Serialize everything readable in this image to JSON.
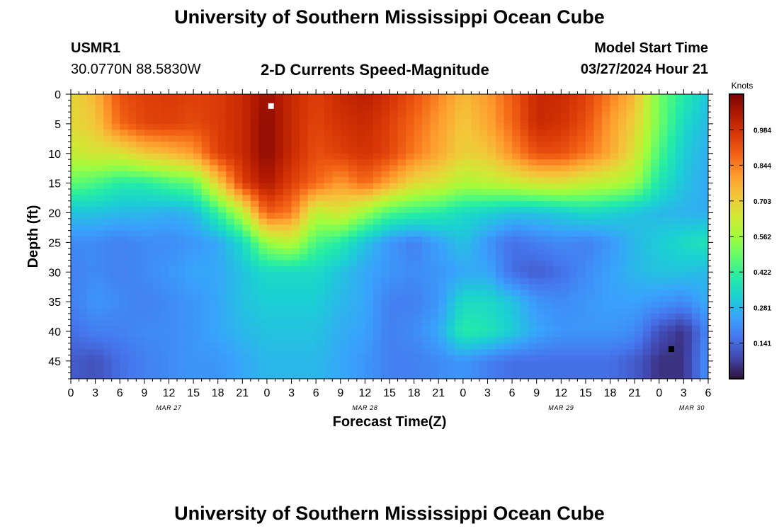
{
  "page": {
    "title": "University of Southern Mississippi Ocean Cube",
    "footer_title": "University of Southern Mississippi Ocean Cube",
    "station_id": "USMR1",
    "station_coords": "30.0770N  88.5830W",
    "subtitle": "2-D Currents Speed-Magnitude",
    "model_start_label": "Model Start Time",
    "model_start_value": "03/27/2024 Hour 21"
  },
  "chart_data": {
    "type": "heatmap",
    "title": "2-D Currents Speed-Magnitude",
    "xlabel": "Forecast Time(Z)",
    "ylabel": "Depth (ft)",
    "colorbar_label": "Knots",
    "colorbar_ticks": [
      0.141,
      0.281,
      0.422,
      0.562,
      0.703,
      0.844,
      0.984
    ],
    "colorbar_range": [
      0.0,
      1.125
    ],
    "colormap": [
      "#30123b",
      "#4145ab",
      "#4675ed",
      "#39a2fc",
      "#1bcfd4",
      "#24eca6",
      "#61fc6c",
      "#a4fc3b",
      "#d1e834",
      "#f3c63a",
      "#fe9b2d",
      "#f36315",
      "#d93806",
      "#b11901",
      "#7a0403"
    ],
    "x_range_hours": [
      0,
      78
    ],
    "y_range_ft": [
      0,
      48
    ],
    "y_ticks": [
      0,
      5,
      10,
      15,
      20,
      25,
      30,
      35,
      40,
      45
    ],
    "x_ticks": [
      {
        "hour": 0,
        "label": "0"
      },
      {
        "hour": 3,
        "label": "3"
      },
      {
        "hour": 6,
        "label": "6"
      },
      {
        "hour": 9,
        "label": "9"
      },
      {
        "hour": 12,
        "label": "12"
      },
      {
        "hour": 15,
        "label": "15"
      },
      {
        "hour": 18,
        "label": "18"
      },
      {
        "hour": 21,
        "label": "21"
      },
      {
        "hour": 24,
        "label": "0"
      },
      {
        "hour": 27,
        "label": "3"
      },
      {
        "hour": 30,
        "label": "6"
      },
      {
        "hour": 33,
        "label": "9"
      },
      {
        "hour": 36,
        "label": "12"
      },
      {
        "hour": 39,
        "label": "15"
      },
      {
        "hour": 42,
        "label": "18"
      },
      {
        "hour": 45,
        "label": "21"
      },
      {
        "hour": 48,
        "label": "0"
      },
      {
        "hour": 51,
        "label": "3"
      },
      {
        "hour": 54,
        "label": "6"
      },
      {
        "hour": 57,
        "label": "9"
      },
      {
        "hour": 60,
        "label": "12"
      },
      {
        "hour": 63,
        "label": "15"
      },
      {
        "hour": 66,
        "label": "18"
      },
      {
        "hour": 69,
        "label": "21"
      },
      {
        "hour": 72,
        "label": "0"
      },
      {
        "hour": 75,
        "label": "3"
      },
      {
        "hour": 78,
        "label": "6"
      }
    ],
    "date_labels": [
      {
        "hour": 12,
        "label": "MAR 27"
      },
      {
        "hour": 36,
        "label": "MAR 28"
      },
      {
        "hour": 60,
        "label": "MAR 29"
      },
      {
        "hour": 76,
        "label": "MAR 30"
      }
    ],
    "depth_levels_ft": [
      0,
      5,
      10,
      15,
      20,
      25,
      30,
      35,
      40,
      45
    ],
    "times_hours": [
      0,
      3,
      6,
      9,
      12,
      15,
      18,
      21,
      24,
      27,
      30,
      33,
      36,
      39,
      42,
      45,
      48,
      51,
      54,
      57,
      60,
      63,
      66,
      69,
      72,
      75,
      78
    ],
    "speed_knots": [
      [
        0.68,
        0.75,
        0.92,
        0.95,
        0.96,
        0.95,
        0.96,
        1.0,
        1.08,
        1.0,
        0.95,
        1.0,
        1.03,
        0.98,
        0.92,
        0.84,
        0.75,
        0.8,
        0.9,
        1.0,
        1.0,
        0.95,
        0.85,
        0.75,
        0.5,
        0.4,
        0.3
      ],
      [
        0.68,
        0.72,
        0.88,
        0.94,
        0.95,
        0.93,
        0.96,
        1.0,
        1.1,
        1.0,
        0.94,
        0.98,
        1.0,
        0.95,
        0.88,
        0.8,
        0.72,
        0.78,
        0.88,
        1.0,
        0.98,
        0.92,
        0.8,
        0.7,
        0.5,
        0.35,
        0.28
      ],
      [
        0.62,
        0.65,
        0.65,
        0.72,
        0.75,
        0.8,
        0.95,
        1.0,
        1.1,
        1.0,
        0.92,
        0.95,
        0.98,
        0.94,
        0.85,
        0.78,
        0.7,
        0.72,
        0.82,
        0.92,
        0.92,
        0.86,
        0.78,
        0.66,
        0.45,
        0.32,
        0.26
      ],
      [
        0.48,
        0.45,
        0.4,
        0.4,
        0.45,
        0.48,
        0.7,
        0.95,
        1.05,
        0.95,
        0.88,
        0.8,
        0.88,
        0.78,
        0.68,
        0.65,
        0.58,
        0.6,
        0.62,
        0.65,
        0.66,
        0.62,
        0.6,
        0.55,
        0.38,
        0.3,
        0.25
      ],
      [
        0.3,
        0.3,
        0.28,
        0.28,
        0.26,
        0.28,
        0.42,
        0.6,
        0.9,
        0.85,
        0.6,
        0.65,
        0.55,
        0.45,
        0.42,
        0.4,
        0.35,
        0.33,
        0.3,
        0.3,
        0.32,
        0.35,
        0.33,
        0.3,
        0.28,
        0.27,
        0.26
      ],
      [
        0.2,
        0.2,
        0.18,
        0.2,
        0.2,
        0.22,
        0.25,
        0.35,
        0.55,
        0.6,
        0.45,
        0.4,
        0.3,
        0.22,
        0.18,
        0.24,
        0.3,
        0.22,
        0.15,
        0.18,
        0.2,
        0.18,
        0.22,
        0.28,
        0.32,
        0.35,
        0.38
      ],
      [
        0.18,
        0.2,
        0.18,
        0.2,
        0.22,
        0.25,
        0.25,
        0.3,
        0.35,
        0.35,
        0.35,
        0.3,
        0.25,
        0.22,
        0.2,
        0.22,
        0.25,
        0.25,
        0.15,
        0.12,
        0.15,
        0.2,
        0.24,
        0.28,
        0.3,
        0.3,
        0.28
      ],
      [
        0.18,
        0.22,
        0.2,
        0.18,
        0.2,
        0.22,
        0.25,
        0.3,
        0.32,
        0.32,
        0.32,
        0.28,
        0.25,
        0.18,
        0.18,
        0.22,
        0.35,
        0.35,
        0.3,
        0.22,
        0.2,
        0.22,
        0.24,
        0.24,
        0.22,
        0.2,
        0.26
      ],
      [
        0.15,
        0.18,
        0.18,
        0.2,
        0.2,
        0.22,
        0.25,
        0.28,
        0.3,
        0.3,
        0.3,
        0.26,
        0.24,
        0.18,
        0.2,
        0.25,
        0.4,
        0.38,
        0.32,
        0.25,
        0.22,
        0.22,
        0.22,
        0.2,
        0.1,
        0.05,
        0.2
      ],
      [
        0.12,
        0.1,
        0.15,
        0.18,
        0.2,
        0.22,
        0.22,
        0.25,
        0.28,
        0.28,
        0.28,
        0.25,
        0.22,
        0.18,
        0.18,
        0.2,
        0.22,
        0.18,
        0.15,
        0.15,
        0.15,
        0.15,
        0.15,
        0.12,
        0.05,
        0.05,
        0.22
      ]
    ],
    "markers": [
      {
        "hour": 24.5,
        "depth_ft": 2,
        "color": "#ffffff"
      },
      {
        "hour": 73.5,
        "depth_ft": 43,
        "color": "#000000"
      }
    ]
  }
}
